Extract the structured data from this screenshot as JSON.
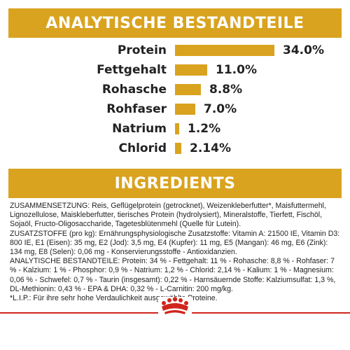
{
  "analytic": {
    "title": "ANALYTISCHE BESTANDTEILE",
    "rows": [
      {
        "label": "Protein",
        "value": "34.0%",
        "amount": 34.0
      },
      {
        "label": "Fettgehalt",
        "value": "11.0%",
        "amount": 11.0
      },
      {
        "label": "Rohasche",
        "value": "8.8%",
        "amount": 8.8
      },
      {
        "label": "Rohfaser",
        "value": "7.0%",
        "amount": 7.0
      },
      {
        "label": "Natrium",
        "value": "1.2%",
        "amount": 1.2
      },
      {
        "label": "Chlorid",
        "value": "2.14%",
        "amount": 2.14
      }
    ]
  },
  "ingredients": {
    "title": "INGREDIENTS",
    "paragraphs": [
      "ZUSAMMENSETZUNG: Reis, Geflügelprotein (getrocknet), Weizenkleberfutter*, Maisfuttermehl, Lignozellulose, Maiskleberfutter, tierisches Protein (hydrolysiert), Mineralstoffe, Tierfett, Fischöl, Sojaöl, Fructo-Oligosaccharide, Tagetesblütenmehl (Quelle für Lutein).",
      "ZUSATZSTOFFE (pro kg): Ernährungsphysiologische Zusatzstoffe: Vitamin A: 21500 IE, Vitamin D3: 800 IE, E1 (Eisen): 35 mg, E2 (Jod): 3,5 mg, E4 (Kupfer): 11 mg, E5 (Mangan): 46 mg, E6 (Zink): 134 mg, E8 (Selen): 0,06 mg - Konservierungsstoffe - Antioxidanzien.",
      "ANALYTISCHE BESTANDTEILE: Protein: 34 % - Fettgehalt: 11 % - Rohasche: 8,8 % - Rohfaser: 7 % - Kalzium: 1 % - Phosphor: 0,9 % - Natrium: 1,2 % - Chlorid: 2,14 % - Kalium: 1 % - Magnesium: 0,06 % - Schwefel: 0,7 % - Taurin (insgesamt): 0,22 % - Harnsäuernde Stoffe: Kalziumsulfat: 1,3 %, DL-Methionin: 0,43 % - EPA & DHA: 0,32 % - L-Carnitin: 200 mg/kg.",
      "*L.I.P.: Für ihre sehr hohe Verdaulichkeit ausgewählte Proteine."
    ]
  },
  "colors": {
    "accent": "#d9a31f",
    "brand_red": "#d0251d"
  },
  "icons": {
    "logo": "royal-canin-crown-icon"
  }
}
